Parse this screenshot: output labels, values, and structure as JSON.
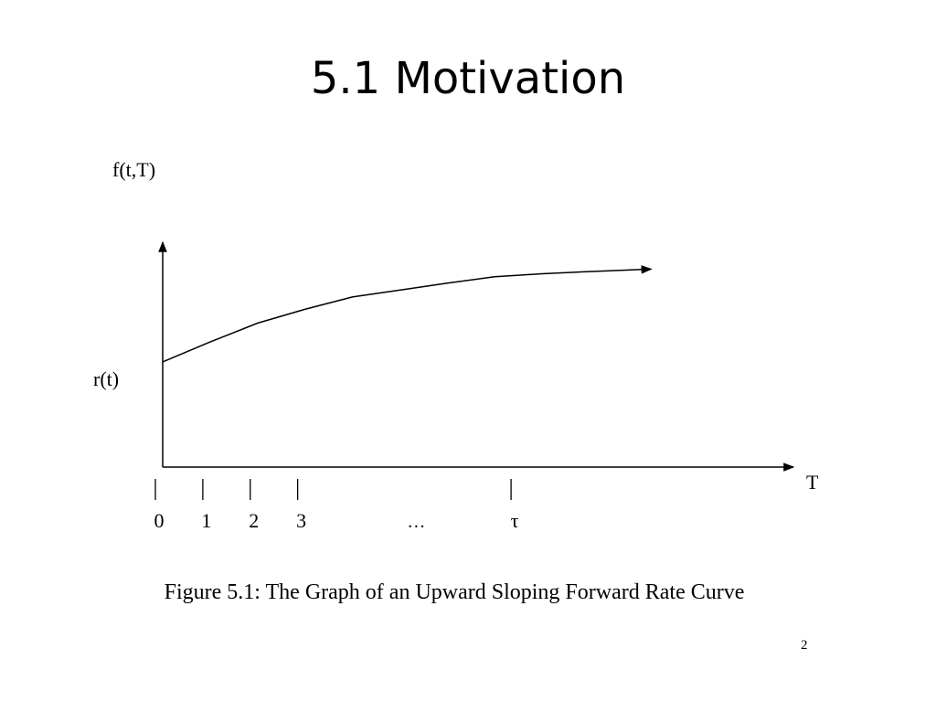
{
  "slide": {
    "title": "5.1 Motivation",
    "caption": "Figure 5.1:  The Graph of an Upward Sloping Forward Rate Curve",
    "page_number": "2"
  },
  "chart_data": {
    "type": "line",
    "ylabel": "f(t,T)",
    "xlabel": "T",
    "y_intercept_label": "r(t)",
    "x_ticks": [
      {
        "label": "0",
        "value": 0
      },
      {
        "label": "1",
        "value": 1
      },
      {
        "label": "2",
        "value": 2
      },
      {
        "label": "3",
        "value": 3
      },
      {
        "label": "τ",
        "value": 7.5
      }
    ],
    "x_ellipsis_label": "…",
    "ellipsis_value": 5.5,
    "series": [
      {
        "x": [
          0,
          1,
          2,
          3,
          4,
          5,
          6,
          7,
          8,
          9,
          10.3
        ],
        "y": [
          2.9,
          3.45,
          3.97,
          4.35,
          4.69,
          4.88,
          5.07,
          5.25,
          5.33,
          5.39,
          5.46
        ]
      }
    ],
    "xlim": [
      0,
      13.3
    ],
    "ylim": [
      0,
      6.2
    ],
    "grid": false,
    "legend": "none"
  }
}
